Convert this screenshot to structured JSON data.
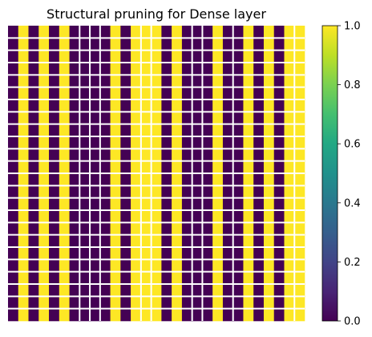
{
  "chart_data": {
    "type": "heatmap",
    "title": "Structural pruning for Dense layer",
    "rows": 24,
    "column_values": [
      0,
      1,
      0,
      1,
      0,
      1,
      0,
      0,
      0,
      0,
      1,
      0,
      1,
      1,
      1,
      0,
      1,
      0,
      0,
      0,
      1,
      0,
      0,
      1,
      0,
      1,
      0,
      1,
      1
    ],
    "colorbar": {
      "range": [
        0.0,
        1.0
      ],
      "ticks": [
        0.0,
        0.2,
        0.4,
        0.6,
        0.8,
        1.0
      ],
      "tick_labels": [
        "0.0",
        "0.2",
        "0.4",
        "0.6",
        "0.8",
        "1.0"
      ]
    },
    "grid": false,
    "colormap": "viridis"
  }
}
